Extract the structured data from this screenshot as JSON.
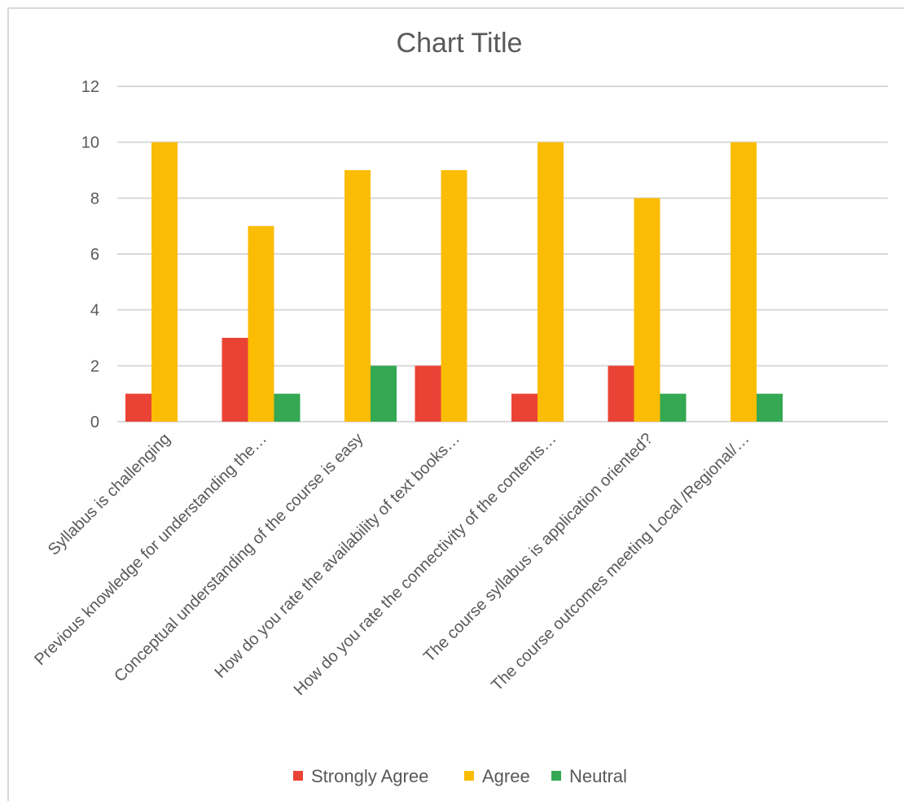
{
  "chart_data": {
    "type": "bar",
    "title": "Chart Title",
    "categories": [
      "Syllabus is challenging",
      "Previous knowledge  for understanding the…",
      "Conceptual  understanding of the course is easy",
      "How do you rate the availability of text books…",
      "How do you rate the connectivity of the contents…",
      "The course syllabus is application oriented?",
      "The course outcomes meeting Local /Regional/…"
    ],
    "series": [
      {
        "name": "Strongly Agree",
        "color": "#ea4335",
        "values": [
          1,
          3,
          0,
          2,
          1,
          2,
          0
        ]
      },
      {
        "name": "Agree",
        "color": "#fbbc04",
        "values": [
          10,
          7,
          9,
          9,
          10,
          8,
          10
        ]
      },
      {
        "name": "Neutral",
        "color": "#34a853",
        "values": [
          0,
          1,
          2,
          0,
          0,
          1,
          1
        ]
      }
    ],
    "ylim": [
      0,
      12
    ],
    "yticks": [
      0,
      2,
      4,
      6,
      8,
      10,
      12
    ],
    "grid": true,
    "legend": "bottom"
  }
}
